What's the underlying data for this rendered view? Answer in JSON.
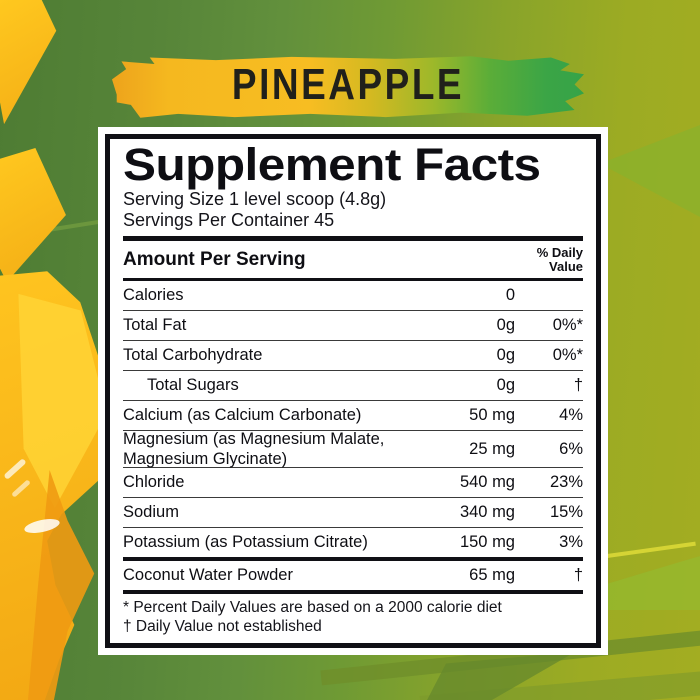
{
  "flavor_banner": {
    "label": "PINEAPPLE"
  },
  "panel": {
    "title": "Supplement Facts",
    "serving_size": "Serving Size 1 level scoop (4.8g)",
    "servings_per_container": "Servings Per Container 45",
    "header": {
      "left": "Amount Per Serving",
      "right_line1": "% Daily",
      "right_line2": "Value"
    },
    "rows": [
      {
        "name": "Calories",
        "amount": "0",
        "dv": ""
      },
      {
        "name": "Total Fat",
        "amount": "0g",
        "dv": "0%*"
      },
      {
        "name": "Total Carbohydrate",
        "amount": "0g",
        "dv": "0%*"
      },
      {
        "name": "Total Sugars",
        "amount": "0g",
        "dv": "†"
      },
      {
        "name": "Calcium (as Calcium Carbonate)",
        "amount": "50 mg",
        "dv": "4%"
      },
      {
        "name": "Magnesium (as Magnesium Malate, Magnesium Glycinate)",
        "amount": "25 mg",
        "dv": "6%"
      },
      {
        "name": "Chloride",
        "amount": "540 mg",
        "dv": "23%"
      },
      {
        "name": "Sodium",
        "amount": "340 mg",
        "dv": "15%"
      },
      {
        "name": "Potassium (as Potassium Citrate)",
        "amount": "150 mg",
        "dv": "3%"
      },
      {
        "name": "Coconut Water Powder",
        "amount": "65 mg",
        "dv": "†"
      }
    ],
    "footnotes": [
      "* Percent Daily Values are based on a 2000 calorie diet",
      "† Daily Value not established"
    ]
  },
  "colors": {
    "background_green": "#5c8c3d",
    "background_olive": "#a3ad22",
    "banner_yellow": "#f6bc21",
    "banner_green": "#3aa546",
    "pineapple_gold": "#f7b518",
    "panel_border": "#101015",
    "text": "#0e0e13"
  }
}
